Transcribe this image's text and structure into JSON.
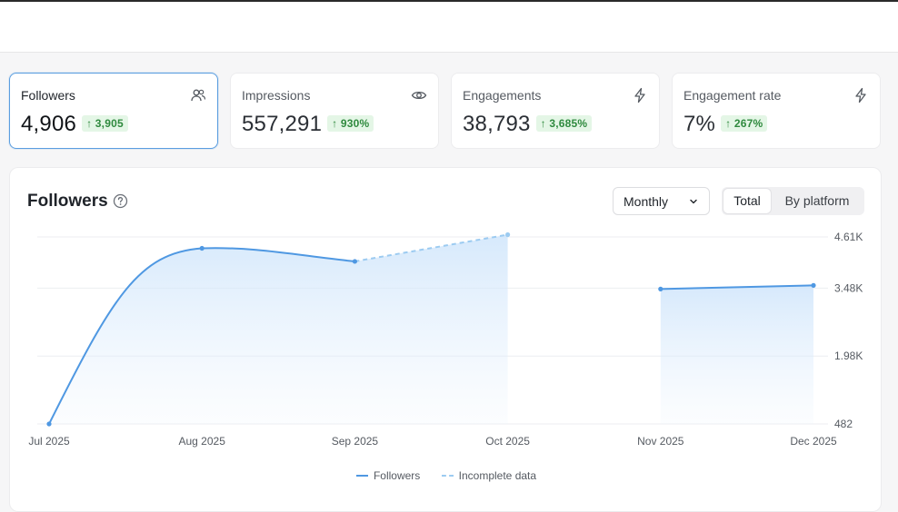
{
  "cards": [
    {
      "label": "Followers",
      "value": "4,906",
      "change": "↑ 3,905",
      "icon": "people-icon"
    },
    {
      "label": "Impressions",
      "value": "557,291",
      "change": "↑ 930%",
      "icon": "eye-icon"
    },
    {
      "label": "Engagements",
      "value": "38,793",
      "change": "↑ 3,685%",
      "icon": "lightning-icon"
    },
    {
      "label": "Engagement rate",
      "value": "7%",
      "change": "↑ 267%",
      "icon": "lightning-icon"
    }
  ],
  "panel": {
    "title": "Followers",
    "period_select": {
      "selected": "Monthly"
    },
    "view_toggle": {
      "total": "Total",
      "by_platform": "By platform",
      "active": "Total"
    }
  },
  "colors": {
    "accent": "#4f98e2",
    "incomplete": "#9ccbf1",
    "badge_bg": "#e4f6e6",
    "badge_text": "#2f8a3e"
  },
  "chart_data": {
    "type": "area",
    "title": "Followers",
    "categories": [
      "Jul 2025",
      "Aug 2025",
      "Sep 2025",
      "Oct 2025",
      "Nov 2025",
      "Dec 2025"
    ],
    "series": [
      {
        "name": "Followers",
        "values": [
          482,
          4360,
          4070,
          null,
          3460,
          3540
        ]
      },
      {
        "name": "Incomplete data",
        "values": [
          null,
          null,
          4070,
          4660,
          null,
          null
        ]
      }
    ],
    "y_ticks": [
      482,
      1980,
      3480,
      4610
    ],
    "y_tick_labels": [
      "482",
      "1.98K",
      "3.48K",
      "4.61K"
    ],
    "ylim": [
      482,
      4610
    ],
    "y_axis_side": "right",
    "grid": true,
    "legend": [
      "Followers",
      "Incomplete data"
    ],
    "legend_position": "bottom"
  }
}
